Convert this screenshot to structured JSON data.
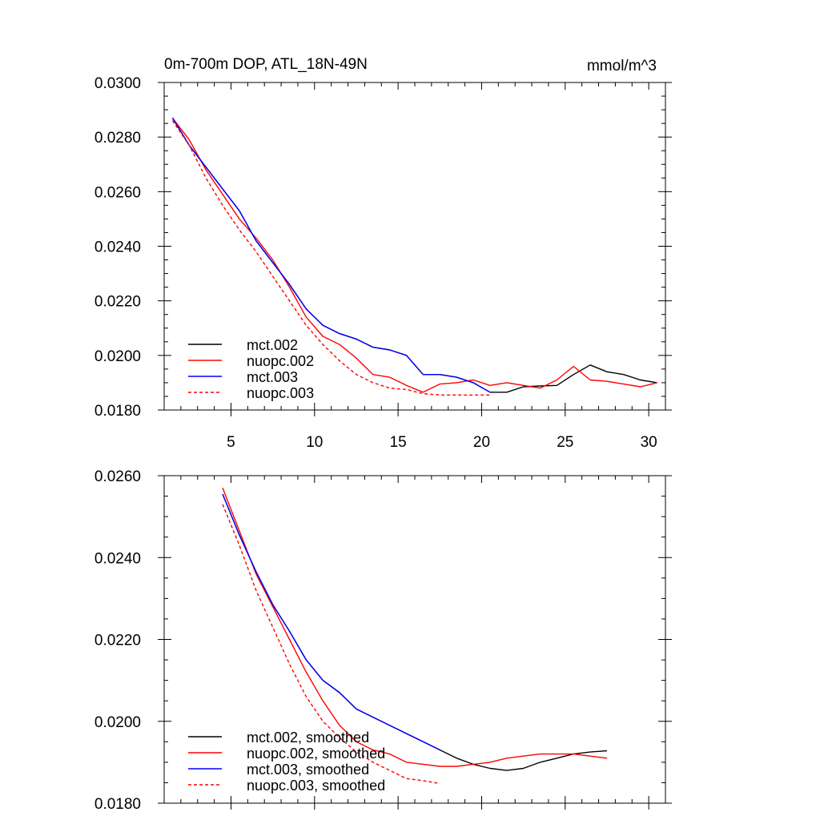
{
  "chart_data": [
    {
      "type": "line",
      "title": "0m-700m DOP, ATL_18N-49N",
      "units": "mmol/m^3",
      "xlim": [
        1,
        31
      ],
      "ylim": [
        0.018,
        0.03
      ],
      "xticks": [
        5,
        10,
        15,
        20,
        25,
        30
      ],
      "yticks": [
        "0.0180",
        "0.0200",
        "0.0220",
        "0.0240",
        "0.0260",
        "0.0280",
        "0.0300"
      ],
      "legend": "bottom-left",
      "series": [
        {
          "name": "mct.002",
          "color": "#000000",
          "dash": "solid",
          "x": [
            1.5,
            2.5,
            3.5,
            4.5,
            5.5,
            6.5,
            7.5,
            8.5,
            9.5,
            10.5,
            11.5,
            12.5,
            13.5,
            14.5,
            15.5,
            16.5,
            17.5,
            18.5,
            19.5,
            20.5,
            21.5,
            22.5,
            23.5,
            24.5,
            25.5,
            26.5,
            27.5,
            28.5,
            29.5,
            30.5
          ],
          "y": [
            0.0287,
            0.0277,
            0.0269,
            0.0261,
            0.0253,
            0.0242,
            0.0234,
            0.0226,
            0.0217,
            0.0211,
            0.0208,
            0.0206,
            0.0203,
            0.0202,
            0.02,
            0.0193,
            0.0193,
            0.0192,
            0.019,
            0.01865,
            0.01865,
            0.01885,
            0.01888,
            0.0189,
            0.0193,
            0.01965,
            0.0194,
            0.0193,
            0.0191,
            0.019
          ]
        },
        {
          "name": "nuopc.002",
          "color": "#ff0000",
          "dash": "solid",
          "x": [
            1.5,
            2.5,
            3.5,
            4.5,
            5.5,
            6.5,
            7.5,
            8.5,
            9.5,
            10.5,
            11.5,
            12.5,
            13.5,
            14.5,
            15.5,
            16.5,
            17.5,
            18.5,
            19.5,
            20.5,
            21.5,
            22.5,
            23.5,
            24.5,
            25.5,
            26.5,
            27.5,
            28.5,
            29.5,
            30.5
          ],
          "y": [
            0.0287,
            0.0279,
            0.0268,
            0.0259,
            0.025,
            0.0243,
            0.0235,
            0.0225,
            0.0214,
            0.0207,
            0.0204,
            0.0199,
            0.0193,
            0.0192,
            0.0189,
            0.01865,
            0.01895,
            0.019,
            0.0191,
            0.0189,
            0.019,
            0.0189,
            0.0188,
            0.0191,
            0.0196,
            0.0191,
            0.01905,
            0.01895,
            0.01885,
            0.019
          ]
        },
        {
          "name": "mct.003",
          "color": "#0000ff",
          "dash": "solid",
          "x": [
            1.5,
            2.5,
            3.5,
            4.5,
            5.5,
            6.5,
            7.5,
            8.5,
            9.5,
            10.5,
            11.5,
            12.5,
            13.5,
            14.5,
            15.5,
            16.5,
            17.5,
            18.5,
            19.5,
            20.5
          ],
          "y": [
            0.0287,
            0.0277,
            0.0269,
            0.0261,
            0.0253,
            0.0242,
            0.0234,
            0.0226,
            0.0217,
            0.0211,
            0.0208,
            0.0206,
            0.0203,
            0.0202,
            0.02,
            0.0193,
            0.0193,
            0.0192,
            0.019,
            0.01865
          ]
        },
        {
          "name": "nuopc.003",
          "color": "#ff0000",
          "dash": "dashed",
          "x": [
            1.5,
            2.5,
            3.5,
            4.5,
            5.5,
            6.5,
            7.5,
            8.5,
            9.5,
            10.5,
            11.5,
            12.5,
            13.5,
            14.5,
            15.5,
            16.5,
            17.5,
            18.5,
            19.5,
            20.5
          ],
          "y": [
            0.0286,
            0.0277,
            0.0265,
            0.0255,
            0.0246,
            0.0238,
            0.0229,
            0.022,
            0.0211,
            0.0204,
            0.0198,
            0.0193,
            0.019,
            0.0188,
            0.01875,
            0.0186,
            0.01855,
            0.01855,
            0.01855,
            0.01855
          ]
        }
      ]
    },
    {
      "type": "line",
      "xlim": [
        1,
        31
      ],
      "ylim": [
        0.018,
        0.026
      ],
      "xticks": [
        5,
        10,
        15,
        20,
        25,
        30
      ],
      "yticks": [
        "0.0180",
        "0.0200",
        "0.0220",
        "0.0240",
        "0.0260"
      ],
      "legend": "bottom-left",
      "series": [
        {
          "name": "mct.002, smoothed",
          "color": "#000000",
          "dash": "solid",
          "x": [
            4.5,
            5.5,
            6.5,
            7.5,
            8.5,
            9.5,
            10.5,
            11.5,
            12.5,
            13.5,
            14.5,
            15.5,
            16.5,
            17.5,
            18.5,
            19.5,
            20.5,
            21.5,
            22.5,
            23.5,
            24.5,
            25.5,
            26.5,
            27.5
          ],
          "y": [
            0.02555,
            0.02455,
            0.02365,
            0.02285,
            0.0222,
            0.0215,
            0.021,
            0.0207,
            0.0203,
            0.0201,
            0.0199,
            0.0197,
            0.0195,
            0.0193,
            0.0191,
            0.01895,
            0.01885,
            0.0188,
            0.01885,
            0.019,
            0.0191,
            0.0192,
            0.01925,
            0.01928
          ]
        },
        {
          "name": "nuopc.002, smoothed",
          "color": "#ff0000",
          "dash": "solid",
          "x": [
            4.5,
            5.5,
            6.5,
            7.5,
            8.5,
            9.5,
            10.5,
            11.5,
            12.5,
            13.5,
            14.5,
            15.5,
            16.5,
            17.5,
            18.5,
            19.5,
            20.5,
            21.5,
            22.5,
            23.5,
            24.5,
            25.5,
            26.5,
            27.5
          ],
          "y": [
            0.0257,
            0.02465,
            0.0236,
            0.0228,
            0.022,
            0.0212,
            0.0205,
            0.0199,
            0.0195,
            0.0193,
            0.0192,
            0.019,
            0.01895,
            0.0189,
            0.0189,
            0.01895,
            0.019,
            0.0191,
            0.01915,
            0.0192,
            0.0192,
            0.0192,
            0.01915,
            0.0191
          ]
        },
        {
          "name": "mct.003, smoothed",
          "color": "#0000ff",
          "dash": "solid",
          "x": [
            4.5,
            5.5,
            6.5,
            7.5,
            8.5,
            9.5,
            10.5,
            11.5,
            12.5,
            13.5,
            14.5,
            15.5,
            16.5,
            17.5
          ],
          "y": [
            0.02555,
            0.02455,
            0.02365,
            0.02285,
            0.0222,
            0.0215,
            0.021,
            0.0207,
            0.0203,
            0.0201,
            0.0199,
            0.0197,
            0.0195,
            0.0193
          ]
        },
        {
          "name": "nuopc.003, smoothed",
          "color": "#ff0000",
          "dash": "dashed",
          "x": [
            4.5,
            5.5,
            6.5,
            7.5,
            8.5,
            9.5,
            10.5,
            11.5,
            12.5,
            13.5,
            14.5,
            15.5,
            16.5,
            17.5
          ],
          "y": [
            0.0253,
            0.0243,
            0.0232,
            0.0223,
            0.0214,
            0.0206,
            0.02,
            0.0196,
            0.01925,
            0.019,
            0.0188,
            0.0186,
            0.01855,
            0.01848
          ]
        }
      ]
    }
  ]
}
